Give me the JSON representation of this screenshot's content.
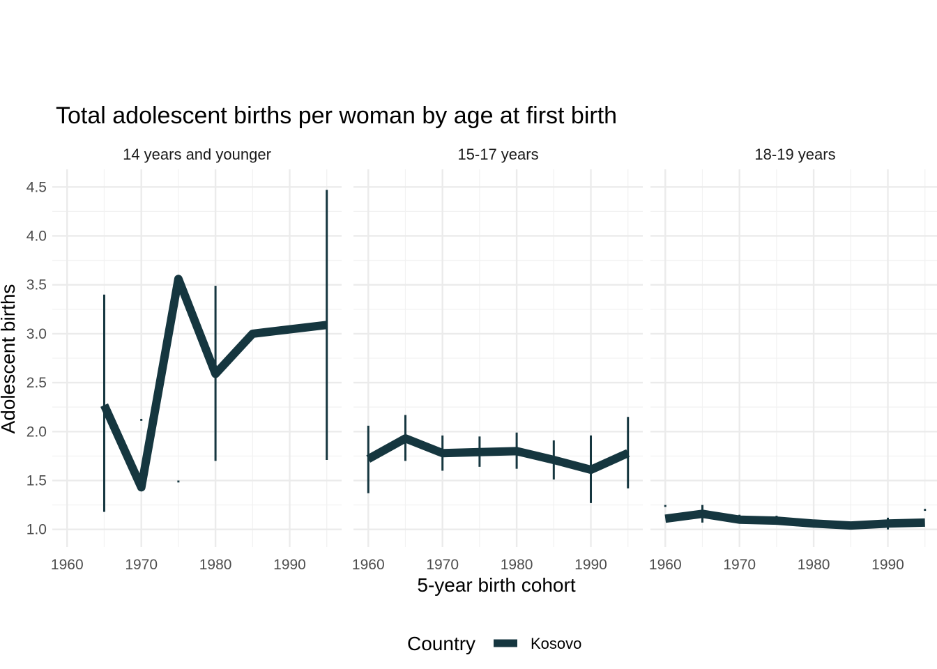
{
  "chart_data": {
    "type": "line",
    "title": "Total adolescent births per woman by age at first birth",
    "xlabel": "5-year birth cohort",
    "ylabel": "Adolescent births",
    "xlim": [
      1958,
      1997
    ],
    "ylim": [
      0.82,
      4.68
    ],
    "x_ticks": [
      1960,
      1970,
      1980,
      1990
    ],
    "y_ticks": [
      1.0,
      1.5,
      2.0,
      2.5,
      3.0,
      3.5,
      4.0,
      4.5
    ],
    "y_tick_labels": [
      "1.0",
      "1.5",
      "2.0",
      "2.5",
      "3.0",
      "3.5",
      "4.0",
      "4.5"
    ],
    "grid": true,
    "legend": {
      "title": "Country",
      "position": "bottom",
      "entries": [
        "Kosovo"
      ]
    },
    "series_color": "#15363f",
    "panels": [
      {
        "label": "14 years and younger",
        "series": [
          {
            "name": "Kosovo",
            "x": [
              1965,
              1970,
              1975,
              1980,
              1985,
              1995
            ],
            "y": [
              2.27,
              1.43,
              3.56,
              2.59,
              3.0,
              3.09
            ]
          }
        ],
        "error_bars": [
          {
            "x": 1965,
            "low": 1.18,
            "high": 3.4
          },
          {
            "x": 1970,
            "low": 2.11,
            "high": 2.13
          },
          {
            "x": 1975,
            "low": 1.48,
            "high": 1.5
          },
          {
            "x": 1980,
            "low": 1.7,
            "high": 3.49
          },
          {
            "x": 1995,
            "low": 1.71,
            "high": 4.47
          }
        ]
      },
      {
        "label": "15-17 years",
        "series": [
          {
            "name": "Kosovo",
            "x": [
              1960,
              1965,
              1970,
              1975,
              1980,
              1985,
              1990,
              1995
            ],
            "y": [
              1.72,
              1.93,
              1.78,
              1.79,
              1.8,
              1.71,
              1.61,
              1.78
            ]
          }
        ],
        "error_bars": [
          {
            "x": 1960,
            "low": 1.37,
            "high": 2.06
          },
          {
            "x": 1965,
            "low": 1.7,
            "high": 2.17
          },
          {
            "x": 1970,
            "low": 1.6,
            "high": 1.96
          },
          {
            "x": 1975,
            "low": 1.64,
            "high": 1.95
          },
          {
            "x": 1980,
            "low": 1.62,
            "high": 1.99
          },
          {
            "x": 1985,
            "low": 1.51,
            "high": 1.91
          },
          {
            "x": 1990,
            "low": 1.27,
            "high": 1.96
          },
          {
            "x": 1995,
            "low": 1.42,
            "high": 2.15
          }
        ]
      },
      {
        "label": "18-19 years",
        "series": [
          {
            "name": "Kosovo",
            "x": [
              1960,
              1965,
              1970,
              1975,
              1980,
              1985,
              1990,
              1995
            ],
            "y": [
              1.11,
              1.16,
              1.1,
              1.09,
              1.06,
              1.04,
              1.06,
              1.07
            ]
          }
        ],
        "error_bars": [
          {
            "x": 1960,
            "low": 1.23,
            "high": 1.25
          },
          {
            "x": 1965,
            "low": 1.07,
            "high": 1.25
          },
          {
            "x": 1970,
            "low": 1.07,
            "high": 1.15
          },
          {
            "x": 1975,
            "low": 1.06,
            "high": 1.14
          },
          {
            "x": 1980,
            "low": 1.03,
            "high": 1.1
          },
          {
            "x": 1985,
            "low": 1.02,
            "high": 1.07
          },
          {
            "x": 1990,
            "low": 1.0,
            "high": 1.12
          },
          {
            "x": 1995,
            "low": 1.19,
            "high": 1.21
          }
        ]
      }
    ]
  }
}
